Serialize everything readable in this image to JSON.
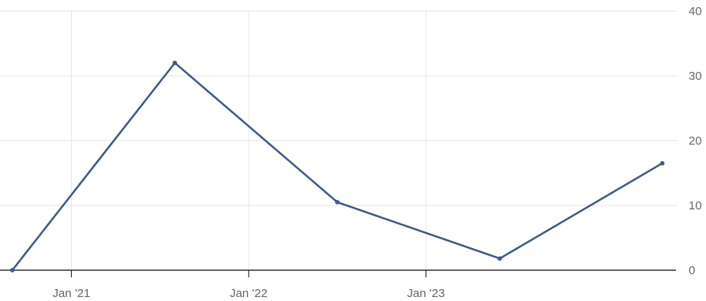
{
  "chart_data": {
    "type": "line",
    "x": [
      "Sep '20",
      "Aug '21",
      "Jul '22",
      "Jun '23",
      "May '24"
    ],
    "series": [
      {
        "values": [
          0,
          32,
          10.5,
          1.8,
          16.5
        ],
        "color": "#3d5a8a"
      }
    ],
    "x_ticks": [
      "Jan '21",
      "Jan '22",
      "Jan '23"
    ],
    "y_ticks": [
      "0",
      "10",
      "20",
      "30",
      "40"
    ],
    "ylim": [
      0,
      40
    ],
    "y_axis_position": "right",
    "grid": true
  }
}
